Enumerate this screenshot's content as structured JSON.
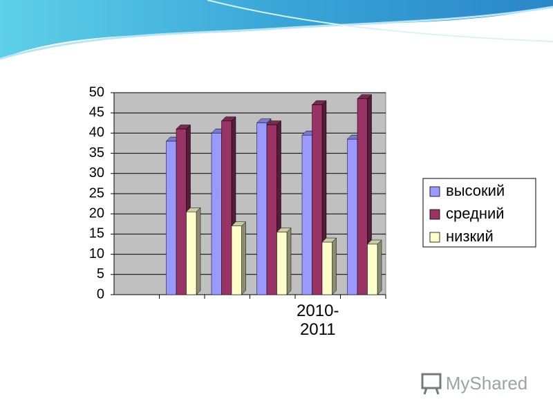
{
  "chart_data": {
    "type": "bar",
    "categories": [
      null,
      null,
      null,
      null,
      "2010-2011",
      null
    ],
    "series": [
      {
        "name": "высокий",
        "color": "#9999ff",
        "values": [
          null,
          38,
          40,
          42.5,
          39.5,
          38.5
        ]
      },
      {
        "name": "средний",
        "color": "#993366",
        "values": [
          null,
          41,
          43,
          42,
          47,
          48.5
        ]
      },
      {
        "name": "низкий",
        "color": "#ffffcc",
        "values": [
          null,
          20.5,
          17,
          15.5,
          13,
          12.5
        ]
      }
    ],
    "ylim": [
      0,
      50
    ],
    "yticks": [
      0,
      5,
      10,
      15,
      20,
      25,
      30,
      35,
      40,
      45,
      50
    ],
    "grid": true,
    "legend": "right",
    "plot_background": "#c0c0c0"
  },
  "watermark": "MyShared"
}
